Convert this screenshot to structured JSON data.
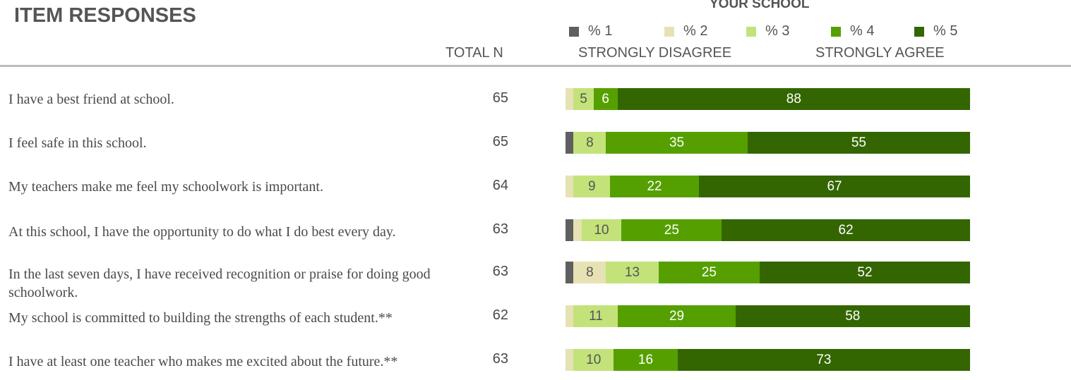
{
  "header": {
    "title": "ITEM RESPONSES",
    "school_label": "YOUR SCHOOL",
    "total_n_label": "TOTAL N",
    "disagree_label": "STRONGLY DISAGREE",
    "agree_label": "STRONGLY AGREE"
  },
  "legend": [
    {
      "label": "% 1",
      "color": "#5f5f5f"
    },
    {
      "label": "% 2",
      "color": "#e6e2b4"
    },
    {
      "label": "% 3",
      "color": "#c3e27a"
    },
    {
      "label": "% 4",
      "color": "#55a000"
    },
    {
      "label": "% 5",
      "color": "#336600"
    }
  ],
  "chart_data": {
    "type": "bar",
    "orientation": "horizontal",
    "stacked": true,
    "percent": true,
    "series": [
      {
        "name": "% 1",
        "color": "#5f5f5f",
        "values": [
          0,
          2,
          0,
          2,
          2,
          0,
          0
        ]
      },
      {
        "name": "% 2",
        "color": "#e6e2b4",
        "values": [
          2,
          0,
          2,
          2,
          8,
          2,
          2
        ]
      },
      {
        "name": "% 3",
        "color": "#c3e27a",
        "values": [
          5,
          8,
          9,
          10,
          13,
          11,
          10
        ]
      },
      {
        "name": "% 4",
        "color": "#55a000",
        "values": [
          6,
          35,
          22,
          25,
          25,
          29,
          16
        ]
      },
      {
        "name": "% 5",
        "color": "#336600",
        "values": [
          88,
          55,
          67,
          62,
          52,
          58,
          73
        ]
      }
    ],
    "rows": [
      {
        "question": "I have a best friend at school.",
        "n": 65,
        "labels": [
          "",
          "",
          "5",
          "6",
          "88"
        ]
      },
      {
        "question": "I feel safe in this school.",
        "n": 65,
        "labels": [
          "",
          "",
          "8",
          "35",
          "55"
        ]
      },
      {
        "question": "My teachers make me feel my schoolwork is important.",
        "n": 64,
        "labels": [
          "",
          "",
          "9",
          "22",
          "67"
        ]
      },
      {
        "question": "At this school, I have the opportunity to do what I do best every day.",
        "n": 63,
        "labels": [
          "",
          "",
          "10",
          "25",
          "62"
        ]
      },
      {
        "question": "In the last seven days, I have received recognition or praise for doing good schoolwork.",
        "n": 63,
        "labels": [
          "",
          "8",
          "13",
          "25",
          "52"
        ]
      },
      {
        "question": "My school is committed to building the strengths of each student.**",
        "n": 62,
        "labels": [
          "",
          "",
          "11",
          "29",
          "58"
        ]
      },
      {
        "question": "I have at least one teacher who makes me excited about the future.**",
        "n": 63,
        "labels": [
          "",
          "",
          "10",
          "16",
          "73"
        ]
      }
    ]
  }
}
